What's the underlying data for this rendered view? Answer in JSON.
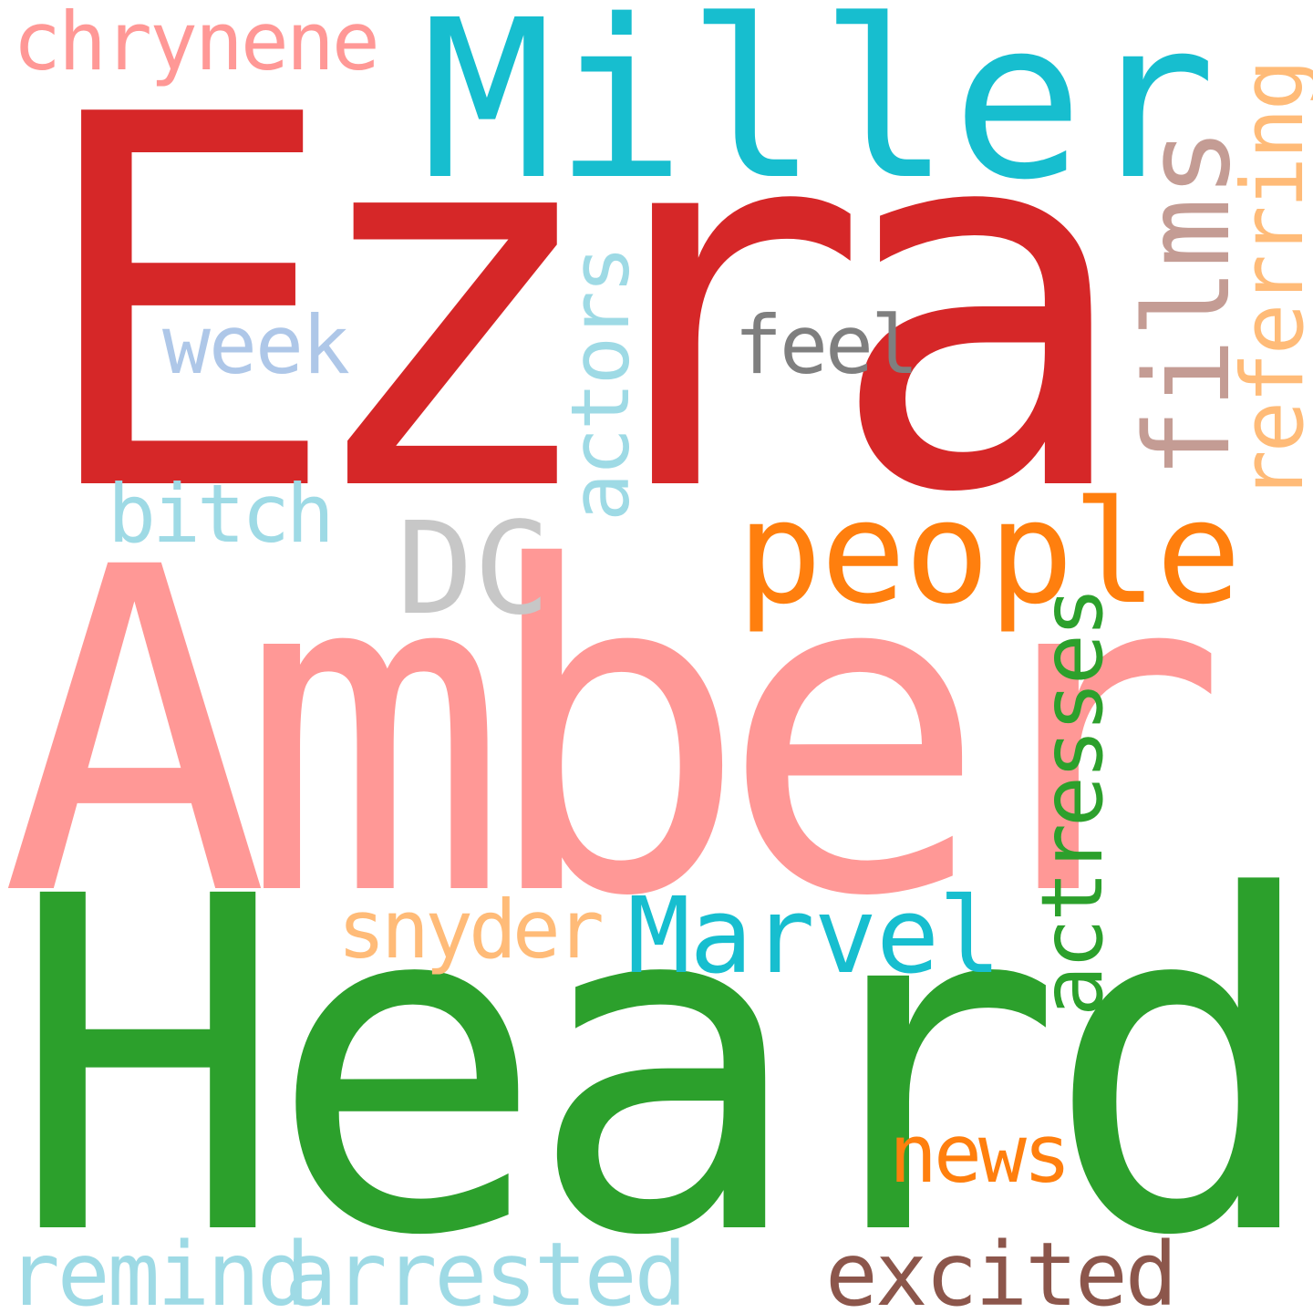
{
  "cloud": {
    "words": {
      "ezra": {
        "text": "Ezra",
        "color": "#d62728",
        "orientation": "horizontal"
      },
      "amber": {
        "text": "Amber",
        "color": "#ff9896",
        "orientation": "horizontal"
      },
      "heard": {
        "text": "Heard",
        "color": "#2ca02c",
        "orientation": "horizontal"
      },
      "miller": {
        "text": "Miller",
        "color": "#17becf",
        "orientation": "horizontal"
      },
      "people": {
        "text": "people",
        "color": "#ff7f0e",
        "orientation": "horizontal"
      },
      "dc": {
        "text": "DC",
        "color": "#c7c7c7",
        "orientation": "horizontal"
      },
      "marvel": {
        "text": "Marvel",
        "color": "#17becf",
        "orientation": "horizontal"
      },
      "films": {
        "text": "films",
        "color": "#c49c94",
        "orientation": "vertical"
      },
      "referring": {
        "text": "referring",
        "color": "#ffbb78",
        "orientation": "vertical"
      },
      "actors": {
        "text": "actors",
        "color": "#9edae5",
        "orientation": "vertical"
      },
      "actresses": {
        "text": "actresses",
        "color": "#2ca02c",
        "orientation": "vertical"
      },
      "chrynene": {
        "text": "chrynene",
        "color": "#ff9896",
        "orientation": "horizontal"
      },
      "week": {
        "text": "week",
        "color": "#aec7e8",
        "orientation": "horizontal"
      },
      "feel": {
        "text": "feel",
        "color": "#7f7f7f",
        "orientation": "horizontal"
      },
      "bitch": {
        "text": "bitch",
        "color": "#9edae5",
        "orientation": "horizontal"
      },
      "snyder": {
        "text": "snyder",
        "color": "#ffbb78",
        "orientation": "horizontal"
      },
      "news": {
        "text": "news",
        "color": "#ff7f0e",
        "orientation": "horizontal"
      },
      "remind": {
        "text": "remind",
        "color": "#9edae5",
        "orientation": "horizontal"
      },
      "arrested": {
        "text": "arrested",
        "color": "#9edae5",
        "orientation": "horizontal"
      },
      "excited": {
        "text": "excited",
        "color": "#8c564b",
        "orientation": "horizontal"
      }
    }
  }
}
